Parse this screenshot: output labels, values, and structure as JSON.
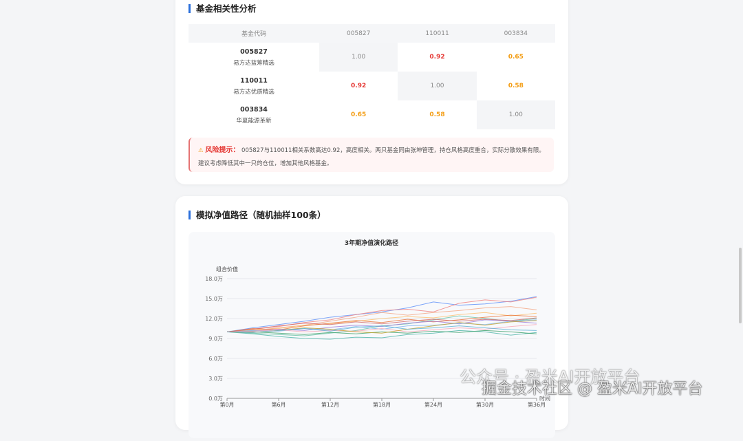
{
  "correlation": {
    "title": "基金相关性分析",
    "header": [
      "基金代码",
      "005827",
      "110011",
      "003834"
    ],
    "rows": [
      {
        "code": "005827",
        "name": "易方达蓝筹精选",
        "values": [
          "1.00",
          "0.92",
          "0.65"
        ],
        "levels": [
          "self",
          "high",
          "mid"
        ]
      },
      {
        "code": "110011",
        "name": "易方达优质精选",
        "values": [
          "0.92",
          "1.00",
          "0.58"
        ],
        "levels": [
          "high",
          "self",
          "mid"
        ]
      },
      {
        "code": "003834",
        "name": "华夏能源革新",
        "values": [
          "0.65",
          "0.58",
          "1.00"
        ],
        "levels": [
          "mid",
          "mid",
          "self"
        ]
      }
    ],
    "alert": {
      "icon": "warning-icon",
      "label": "风险提示：",
      "text": "005827与110011相关系数高达0.92，高度相关。两只基金同由张坤管理，持仓风格高度重合，实际分散效果有限。建议考虑降低其中一只的仓位，增加其他风格基金。"
    }
  },
  "simulation": {
    "title": "模拟净值路径（随机抽样100条）"
  },
  "chart_data": {
    "type": "line",
    "title": "3年期净值演化路径",
    "ylabel": "组合价值",
    "xlabel": "时间",
    "ylim": [
      0,
      18
    ],
    "yticks": [
      "0.0万",
      "3.0万",
      "6.0万",
      "9.0万",
      "12.0万",
      "15.0万",
      "18.0万"
    ],
    "categories": [
      "第0月",
      "第6月",
      "第12月",
      "第18月",
      "第24月",
      "第30月",
      "第36月"
    ],
    "x": [
      0,
      3,
      6,
      9,
      12,
      15,
      18,
      21,
      24,
      27,
      30,
      33,
      36
    ],
    "grid": true,
    "series": [
      {
        "color": "#5b8ff9",
        "values": [
          10,
          10.6,
          11.1,
          11.6,
          12.2,
          12.6,
          13,
          13.6,
          14.5,
          14,
          14.2,
          14.6,
          15.3
        ]
      },
      {
        "color": "#f08080",
        "values": [
          10,
          10.4,
          10.8,
          11.4,
          11.8,
          12.6,
          13.2,
          13.4,
          13,
          14.3,
          14.8,
          14.5,
          15.2
        ]
      },
      {
        "color": "#f4a582",
        "values": [
          10,
          10.2,
          10.6,
          11,
          11.6,
          12.2,
          12.9,
          12.5,
          12.9,
          13.2,
          13.6,
          13.8,
          13.3
        ]
      },
      {
        "color": "#fdbf6f",
        "values": [
          10,
          10.3,
          10.5,
          11,
          11.2,
          11.6,
          12,
          12.3,
          12.1,
          12.6,
          12.9,
          12.4,
          12.8
        ]
      },
      {
        "color": "#66c2a5",
        "values": [
          10,
          9.8,
          9.6,
          9.4,
          9.8,
          10.2,
          10.9,
          11.2,
          11.8,
          12.4,
          12,
          11.6,
          12
        ]
      },
      {
        "color": "#e8743b",
        "values": [
          10,
          10.5,
          10.3,
          10.9,
          11.3,
          11.7,
          11.4,
          11.9,
          11.5,
          11.8,
          12.2,
          12.5,
          12.3
        ]
      },
      {
        "color": "#9e7bd8",
        "values": [
          10,
          10.1,
          10.4,
          10.2,
          10.7,
          11,
          10.8,
          11.3,
          11.6,
          11.2,
          11.8,
          11.6,
          11.3
        ]
      },
      {
        "color": "#4bb4a8",
        "values": [
          10,
          9.7,
          9.3,
          9,
          8.9,
          9.2,
          9.1,
          9.6,
          9.8,
          10.2,
          10,
          9.5,
          9.9
        ]
      },
      {
        "color": "#3ca06a",
        "values": [
          10,
          10,
          9.8,
          9.6,
          9.9,
          9.7,
          10,
          9.8,
          10.1,
          9.9,
          10.2,
          10,
          9.7
        ]
      },
      {
        "color": "#7eb6f0",
        "values": [
          10,
          10.2,
          10.1,
          10.5,
          10.3,
          10.8,
          10.4,
          10.9,
          11,
          11.3,
          11.1,
          11.6,
          11.8
        ]
      },
      {
        "color": "#f7a6b8",
        "values": [
          10,
          10.1,
          10.3,
          10,
          10.2,
          10.1,
          10.5,
          10,
          10.3,
          10.6,
          10.4,
          10.8,
          11.1
        ]
      },
      {
        "color": "#c9a227",
        "values": [
          10,
          9.9,
          10.2,
          10.6,
          10.4,
          10,
          9.8,
          10.4,
          10.9,
          11.4,
          11,
          11.5,
          11.7
        ]
      },
      {
        "color": "#d36b6b",
        "values": [
          10,
          10.4,
          10.9,
          11.3,
          11.1,
          11.5,
          11.2,
          11.6,
          11.9,
          11.6,
          11.9,
          11.7,
          12.1
        ]
      },
      {
        "color": "#5ab0d6",
        "values": [
          10,
          9.9,
          10.2,
          10.5,
          10.1,
          10.7,
          10.9,
          10.4,
          10.6,
          10.9,
          10.6,
          10.3,
          10.2
        ]
      }
    ]
  },
  "watermark": {
    "line1": "公众号 · 盈米AI开放平台",
    "line2": "掘金技术社区 @ 盈米AI开放平台"
  }
}
